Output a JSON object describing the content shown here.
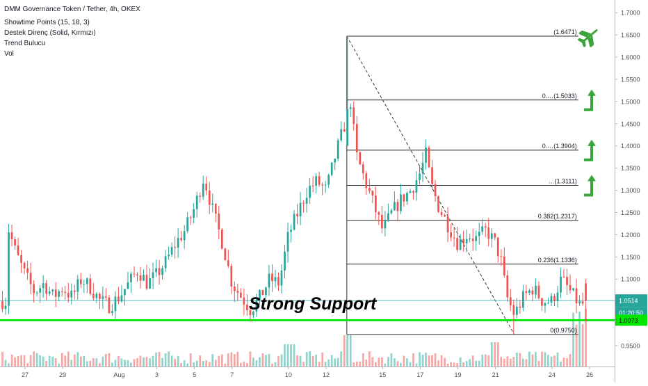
{
  "header": {
    "title": "DMM Governance Token / Tether, 4h, OKEX",
    "indicators": [
      "Showtime Points (15, 18, 3)",
      "Destek Direnç (Solid, Kırmızı)",
      "Trend Bulucu",
      "Vol"
    ]
  },
  "annotation": {
    "text": "Strong Support"
  },
  "colors": {
    "up": "#26a69a",
    "down": "#ef5350",
    "vol_up": "#8fd3cb",
    "vol_down": "#f4a7a5",
    "support": "#00e600",
    "price_line": "#5bbcc9",
    "arrow": "#3aa53a",
    "fib": "#2a2a2a"
  },
  "chart_data": {
    "type": "candlestick",
    "symbol": "DMM Governance Token / Tether",
    "interval": "4h",
    "exchange": "OKEX",
    "y_ticks": [
      "1.7000",
      "1.6500",
      "1.6000",
      "1.5500",
      "1.5000",
      "1.4500",
      "1.4000",
      "1.3500",
      "1.3000",
      "1.2500",
      "1.2000",
      "1.1500",
      "1.1000",
      "1.0500",
      "1.0000",
      "0.9500"
    ],
    "ylim": [
      0.92,
      1.72
    ],
    "x_ticks": [
      {
        "label": "27",
        "day": -4
      },
      {
        "label": "29",
        "day": -2
      },
      {
        "label": "Aug",
        "day": 1
      },
      {
        "label": "3",
        "day": 3
      },
      {
        "label": "5",
        "day": 5
      },
      {
        "label": "7",
        "day": 7
      },
      {
        "label": "10",
        "day": 10
      },
      {
        "label": "12",
        "day": 12
      },
      {
        "label": "15",
        "day": 15
      },
      {
        "label": "17",
        "day": 17
      },
      {
        "label": "19",
        "day": 19
      },
      {
        "label": "21",
        "day": 21
      },
      {
        "label": "24",
        "day": 24
      },
      {
        "label": "26",
        "day": 26
      }
    ],
    "xlim": [
      -5,
      27.5
    ],
    "fibonacci": [
      {
        "label": "(1.6471)",
        "value": 1.6471
      },
      {
        "label": "0.…(1.5033)",
        "value": 1.5033
      },
      {
        "label": "0.…(1.3904)",
        "value": 1.3904
      },
      {
        "label": "…(1.3111)",
        "value": 1.3111
      },
      {
        "label": "0.382(1.2317)",
        "value": 1.2317
      },
      {
        "label": "0.236(1.1336)",
        "value": 1.1336
      },
      {
        "label": "0(0.9750)",
        "value": 0.975
      }
    ],
    "trendline": {
      "from": [
        13.1,
        1.6471
      ],
      "to": [
        22.0,
        0.975
      ]
    },
    "support": {
      "value": 1.0073,
      "label": "1.0073"
    },
    "last_price": {
      "value": 1.0514,
      "label": "1.0514",
      "countdown": "01:20:50"
    },
    "candle_anchors": [
      [
        -5.0,
        1.23
      ],
      [
        -4.5,
        1.16
      ],
      [
        -4.0,
        1.11
      ],
      [
        -3.5,
        1.07
      ],
      [
        -3.0,
        1.09
      ],
      [
        -2.5,
        1.06
      ],
      [
        -2.0,
        1.08
      ],
      [
        -1.5,
        1.06
      ],
      [
        -1.0,
        1.1
      ],
      [
        -0.5,
        1.08
      ],
      [
        0.0,
        1.05
      ],
      [
        0.5,
        1.04
      ],
      [
        1.0,
        1.06
      ],
      [
        1.5,
        1.09
      ],
      [
        2.0,
        1.12
      ],
      [
        2.5,
        1.09
      ],
      [
        3.0,
        1.11
      ],
      [
        3.5,
        1.14
      ],
      [
        4.0,
        1.18
      ],
      [
        4.5,
        1.21
      ],
      [
        5.0,
        1.26
      ],
      [
        5.5,
        1.33
      ],
      [
        6.0,
        1.25
      ],
      [
        6.5,
        1.18
      ],
      [
        7.0,
        1.09
      ],
      [
        7.5,
        1.06
      ],
      [
        8.0,
        1.03
      ],
      [
        8.5,
        1.06
      ],
      [
        9.0,
        1.1
      ],
      [
        9.5,
        1.09
      ],
      [
        10.0,
        1.2
      ],
      [
        10.5,
        1.25
      ],
      [
        11.0,
        1.3
      ],
      [
        11.5,
        1.32
      ],
      [
        12.0,
        1.3
      ],
      [
        12.5,
        1.38
      ],
      [
        13.0,
        1.45
      ],
      [
        13.3,
        1.5
      ],
      [
        13.6,
        1.38
      ],
      [
        14.0,
        1.33
      ],
      [
        14.5,
        1.27
      ],
      [
        15.0,
        1.21
      ],
      [
        15.5,
        1.25
      ],
      [
        16.0,
        1.28
      ],
      [
        16.5,
        1.3
      ],
      [
        17.0,
        1.34
      ],
      [
        17.3,
        1.38
      ],
      [
        17.6,
        1.31
      ],
      [
        18.0,
        1.26
      ],
      [
        18.5,
        1.22
      ],
      [
        19.0,
        1.18
      ],
      [
        19.5,
        1.2
      ],
      [
        20.0,
        1.19
      ],
      [
        20.5,
        1.21
      ],
      [
        21.0,
        1.18
      ],
      [
        21.3,
        1.14
      ],
      [
        21.6,
        1.06
      ],
      [
        22.0,
        1.02
      ],
      [
        22.5,
        1.06
      ],
      [
        23.0,
        1.08
      ],
      [
        23.5,
        1.05
      ],
      [
        24.0,
        1.05
      ],
      [
        24.5,
        1.1
      ],
      [
        25.0,
        1.07
      ],
      [
        25.5,
        1.04
      ],
      [
        25.9,
        1.05
      ]
    ],
    "volume_scale_max": 100,
    "markers": [
      {
        "type": "airplane",
        "value": 1.6471
      },
      {
        "type": "up-arrow",
        "value": 1.5033
      },
      {
        "type": "up-arrow",
        "value": 1.3904
      },
      {
        "type": "up-arrow",
        "value": 1.3111
      }
    ]
  }
}
